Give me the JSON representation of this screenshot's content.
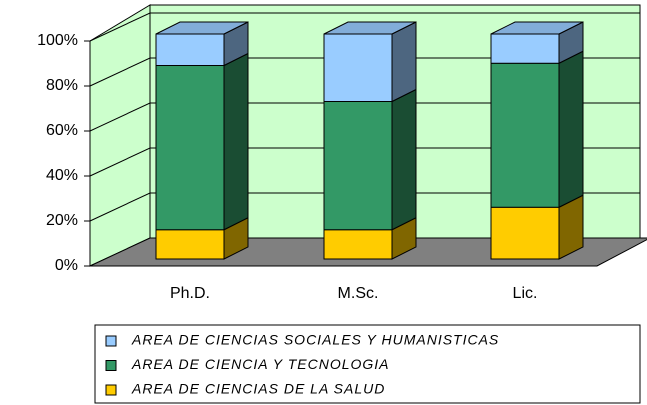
{
  "chart_data": {
    "type": "bar",
    "stacked": true,
    "categories": [
      "Ph.D.",
      "M.Sc.",
      "Lic."
    ],
    "series": [
      {
        "name": "AREA DE CIENCIAS DE LA SALUD",
        "color": "#ffcc00",
        "values": [
          13,
          13,
          23
        ]
      },
      {
        "name": "AREA DE CIENCIA Y TECNOLOGIA",
        "color": "#339966",
        "values": [
          73,
          57,
          64
        ]
      },
      {
        "name": "AREA DE CIENCIAS SOCIALES Y HUMANISTICAS",
        "color": "#99ccff",
        "values": [
          14,
          30,
          13
        ]
      }
    ],
    "ylim": [
      0,
      100
    ],
    "yticks": [
      {
        "value": 0,
        "label": "0%"
      },
      {
        "value": 20,
        "label": "20%"
      },
      {
        "value": 40,
        "label": "40%"
      },
      {
        "value": 60,
        "label": "60%"
      },
      {
        "value": 80,
        "label": "80%"
      },
      {
        "value": 100,
        "label": "100%"
      }
    ],
    "grid": true
  }
}
